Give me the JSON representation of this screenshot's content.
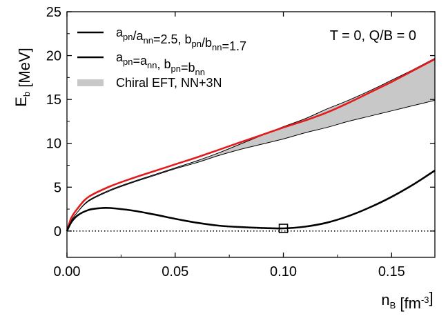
{
  "chart_data": {
    "type": "line",
    "title": "",
    "annotation": "T = 0, Q/B = 0",
    "xlabel": {
      "main": "n",
      "sub": "B",
      "rest": " [fm",
      "sup": "-3",
      "close": "]"
    },
    "ylabel": {
      "main": "E",
      "sub": "b",
      "rest": " [MeV]"
    },
    "xlim": [
      0.0,
      0.17
    ],
    "ylim": [
      -3,
      25
    ],
    "xticks": [
      0.0,
      0.05,
      0.1,
      0.15
    ],
    "xtick_labels": [
      "0.00",
      "0.05",
      "0.10",
      "0.15"
    ],
    "yticks": [
      0,
      5,
      10,
      15,
      20,
      25
    ],
    "ytick_labels": [
      "0",
      "5",
      "10",
      "15",
      "20",
      "25"
    ],
    "grid": false,
    "legend_position": "top-left",
    "legend": [
      {
        "parts": [
          [
            "a",
            ""
          ],
          [
            "pn",
            "sub"
          ],
          [
            "/a",
            ""
          ],
          [
            "nn",
            "sub"
          ],
          [
            "=2.5, b",
            ""
          ],
          [
            "pn",
            "sub"
          ],
          [
            "/b",
            ""
          ],
          [
            "nn",
            "sub"
          ],
          [
            "=1.7",
            ""
          ]
        ]
      },
      {
        "parts": [
          [
            "a",
            ""
          ],
          [
            "pn",
            "sub"
          ],
          [
            "=a",
            ""
          ],
          [
            "nn",
            "sub"
          ],
          [
            ", b",
            ""
          ],
          [
            "pn",
            "sub"
          ],
          [
            "=b",
            ""
          ],
          [
            "nn",
            "sub"
          ]
        ]
      },
      {
        "parts": [
          [
            "Chiral EFT, NN+3N",
            ""
          ]
        ]
      }
    ],
    "series": [
      {
        "color": "#e41a1c",
        "x": [
          0.0,
          0.002,
          0.005,
          0.01,
          0.02,
          0.03,
          0.04,
          0.05,
          0.06,
          0.07,
          0.08,
          0.09,
          0.1,
          0.11,
          0.12,
          0.13,
          0.14,
          0.15,
          0.16,
          0.17
        ],
        "y": [
          0.0,
          1.5,
          2.6,
          3.9,
          5.1,
          6.0,
          6.8,
          7.6,
          8.4,
          9.25,
          10.1,
          10.95,
          11.8,
          12.6,
          13.5,
          14.6,
          15.8,
          17.0,
          18.3,
          19.6
        ]
      },
      {
        "color": "#000000",
        "x": [
          0.0,
          0.002,
          0.005,
          0.01,
          0.015,
          0.02,
          0.03,
          0.04,
          0.05,
          0.06,
          0.07,
          0.08,
          0.09,
          0.1,
          0.11,
          0.12,
          0.13,
          0.14,
          0.15,
          0.16,
          0.17
        ],
        "y": [
          0.0,
          1.0,
          1.8,
          2.4,
          2.6,
          2.62,
          2.35,
          1.9,
          1.4,
          0.95,
          0.62,
          0.45,
          0.35,
          0.3,
          0.5,
          0.95,
          1.7,
          2.7,
          3.9,
          5.3,
          6.9
        ]
      }
    ],
    "band": {
      "color": "#c8c8c8",
      "x": [
        0.0,
        0.002,
        0.005,
        0.01,
        0.02,
        0.03,
        0.04,
        0.05,
        0.06,
        0.07,
        0.08,
        0.09,
        0.1,
        0.11,
        0.12,
        0.13,
        0.14,
        0.15,
        0.16,
        0.17
      ],
      "upper": [
        0.0,
        1.2,
        2.2,
        3.5,
        4.7,
        5.6,
        6.4,
        7.2,
        8.0,
        8.9,
        9.9,
        10.9,
        11.9,
        12.8,
        13.9,
        14.9,
        16.0,
        17.2,
        18.4,
        19.7
      ],
      "lower": [
        0.0,
        1.2,
        2.2,
        3.4,
        4.6,
        5.5,
        6.3,
        7.1,
        7.8,
        8.6,
        9.3,
        9.9,
        10.5,
        11.2,
        11.8,
        12.5,
        13.1,
        13.7,
        14.3,
        14.9
      ]
    },
    "reference_line": {
      "y": 0,
      "style": "dotted"
    },
    "marker": {
      "x": 0.1,
      "y": 0.3,
      "shape": "open-square"
    }
  }
}
